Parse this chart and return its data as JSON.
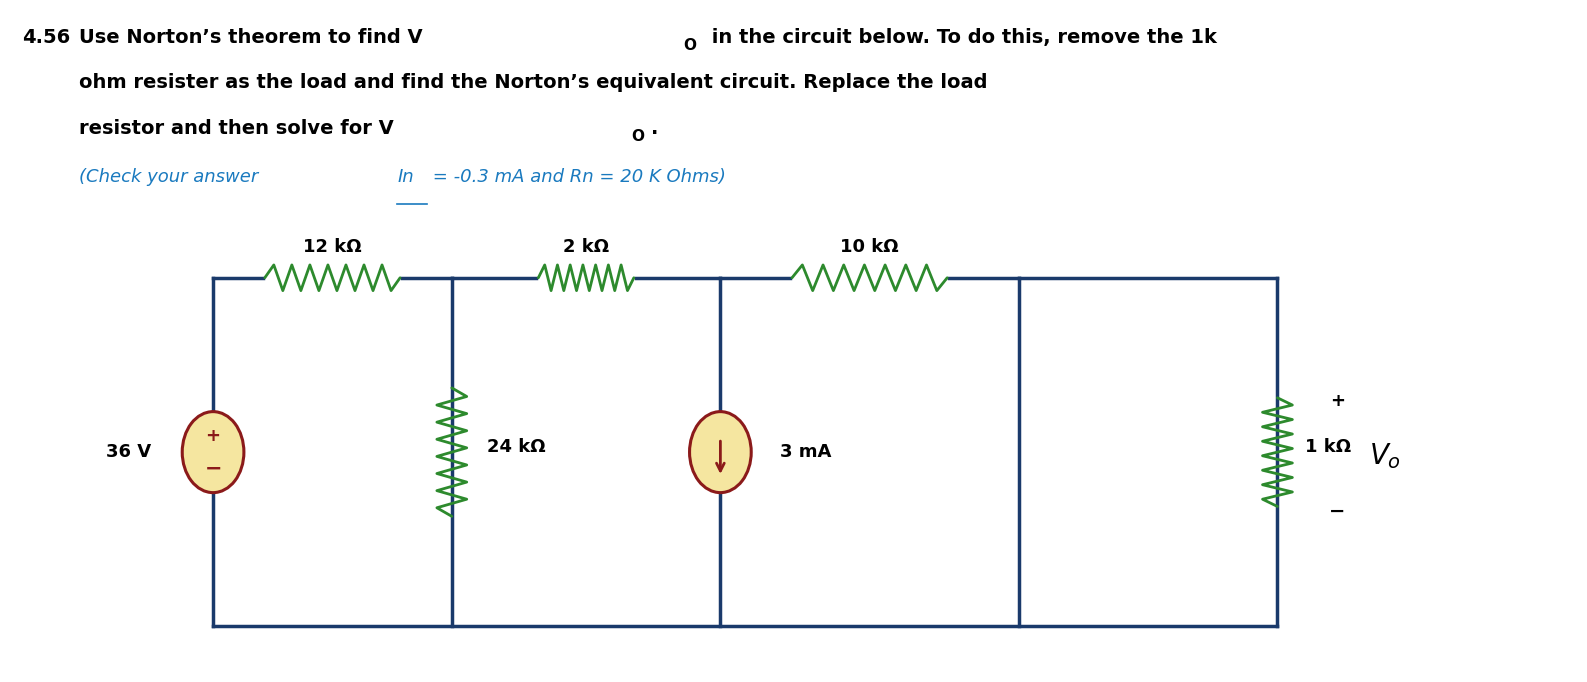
{
  "wire_color": "#1a3a6b",
  "resistor_color": "#2d8a2d",
  "source_fill": "#f5e6a0",
  "source_border": "#8b1a1a",
  "text_color": "#000000",
  "blue_text_color": "#1a7abf",
  "bg_color": "#ffffff",
  "font_size_title": 14,
  "font_size_check": 13,
  "font_size_label": 13,
  "title_number": "4.56",
  "line1a": "Use Norton’s theorem to find V",
  "line1b": "O",
  "line1c": " in the circuit below. To do this, remove the 1k",
  "line2": "ohm resister as the load and find the Norton’s equivalent circuit. Replace the load",
  "line3a": "resistor and then solve for V",
  "line3b": "O",
  "line3c": ".",
  "check_pre": "(Check your answer ",
  "check_In": "In",
  "check_post": " = -0.3 mA and Rn = 20 K Ohms)"
}
